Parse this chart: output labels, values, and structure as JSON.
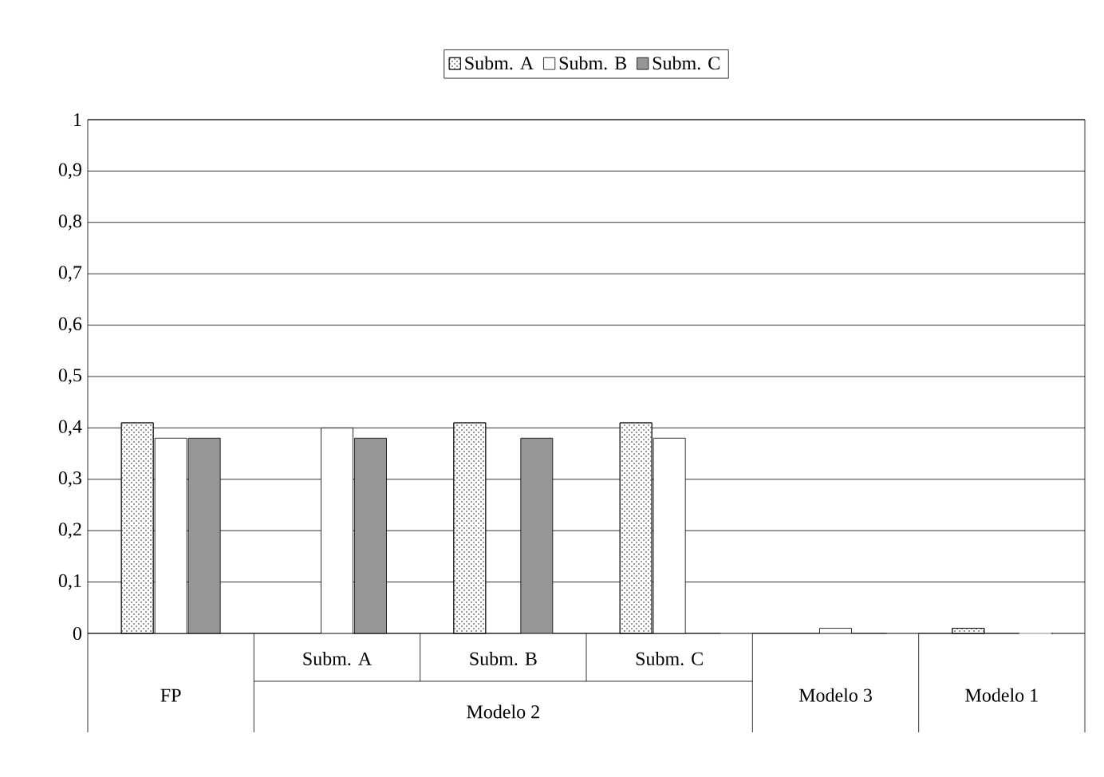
{
  "chart_data": {
    "type": "bar",
    "categories": [
      "FP",
      "Subm. A",
      "Subm. B",
      "Subm. C",
      "Modelo 3",
      "Modelo 1"
    ],
    "series": [
      {
        "name": "Subm. A",
        "color": "#ffffff",
        "values": [
          0.41,
          0,
          0.41,
          0.41,
          0,
          0.01
        ]
      },
      {
        "name": "Subm. B",
        "color": "#ffffff",
        "values": [
          0.38,
          0.4,
          0,
          0.38,
          0.01,
          0
        ]
      },
      {
        "name": "Subm. C",
        "color": "#969696",
        "values": [
          0.38,
          0.38,
          0.38,
          0,
          0,
          0
        ]
      }
    ],
    "annotations": [
      "Modelo 2"
    ],
    "ylim": [
      0,
      1
    ],
    "yticks": [
      0,
      {
        "value": 0.1,
        "label": "0,1"
      },
      {
        "value": 0.2,
        "label": "0,2"
      },
      {
        "value": 0.3,
        "label": "0,3"
      },
      {
        "value": 0.4,
        "label": "0,4"
      },
      {
        "value": 0.5,
        "label": "0,5"
      },
      {
        "value": 0.6,
        "label": "0,6"
      },
      {
        "value": 0.7,
        "label": "0,7"
      },
      {
        "value": 0.8,
        "label": "0,8"
      },
      {
        "value": 0.9,
        "label": "0,9"
      },
      1
    ],
    "grid": "y",
    "legend": "top"
  }
}
